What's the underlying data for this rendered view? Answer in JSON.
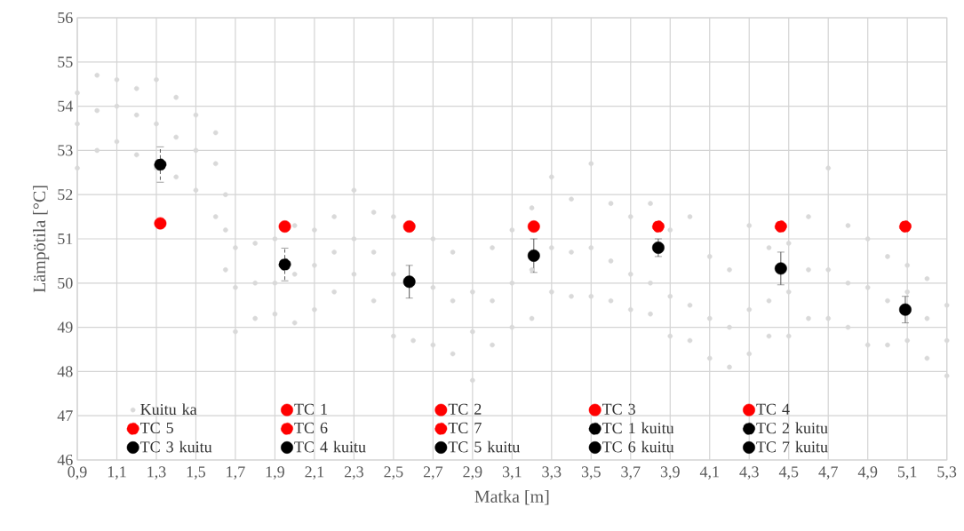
{
  "chart_data": {
    "type": "scatter",
    "xlabel": "Matka [m]",
    "ylabel": "Lämpötila [°C]",
    "xlim": [
      0.9,
      5.3
    ],
    "ylim": [
      46,
      56
    ],
    "xticks": [
      {
        "value": 0.9,
        "label": "0,9"
      },
      {
        "value": 1.1,
        "label": "1,1"
      },
      {
        "value": 1.3,
        "label": "1,3"
      },
      {
        "value": 1.5,
        "label": "1,5"
      },
      {
        "value": 1.7,
        "label": "1,7"
      },
      {
        "value": 1.9,
        "label": "1,9"
      },
      {
        "value": 2.1,
        "label": "2,1"
      },
      {
        "value": 2.3,
        "label": "2,3"
      },
      {
        "value": 2.5,
        "label": "2,5"
      },
      {
        "value": 2.7,
        "label": "2,7"
      },
      {
        "value": 2.9,
        "label": "2,9"
      },
      {
        "value": 3.1,
        "label": "3,1"
      },
      {
        "value": 3.3,
        "label": "3,3"
      },
      {
        "value": 3.5,
        "label": "3,5"
      },
      {
        "value": 3.7,
        "label": "3,7"
      },
      {
        "value": 3.9,
        "label": "3,9"
      },
      {
        "value": 4.1,
        "label": "4,1"
      },
      {
        "value": 4.3,
        "label": "4,3"
      },
      {
        "value": 4.5,
        "label": "4,5"
      },
      {
        "value": 4.7,
        "label": "4,7"
      },
      {
        "value": 4.9,
        "label": "4,9"
      },
      {
        "value": 5.1,
        "label": "5,1"
      },
      {
        "value": 5.3,
        "label": "5,3"
      }
    ],
    "yticks": [
      46,
      47,
      48,
      49,
      50,
      51,
      52,
      53,
      54,
      55,
      56
    ],
    "grid": true,
    "legend": "bottom",
    "marker": "circle",
    "series": [
      {
        "name": "Kuitu ka",
        "color": "#d9d9d9",
        "x": [
          0.9,
          0.9,
          0.9,
          1.0,
          1.0,
          1.0,
          1.1,
          1.1,
          1.1,
          1.2,
          1.2,
          1.2,
          1.3,
          1.3,
          1.3,
          1.4,
          1.4,
          1.4,
          1.5,
          1.5,
          1.5,
          1.6,
          1.6,
          1.6,
          1.65,
          1.65,
          1.65,
          1.7,
          1.7,
          1.7,
          1.8,
          1.8,
          1.8,
          1.9,
          1.9,
          1.9,
          2.0,
          2.0,
          2.0,
          2.1,
          2.1,
          2.1,
          2.2,
          2.2,
          2.2,
          2.3,
          2.3,
          2.3,
          2.4,
          2.4,
          2.4,
          2.5,
          2.5,
          2.5,
          2.6,
          2.6,
          2.6,
          2.7,
          2.7,
          2.7,
          2.8,
          2.8,
          2.8,
          2.9,
          2.9,
          2.9,
          3.0,
          3.0,
          3.0,
          3.1,
          3.1,
          3.1,
          3.2,
          3.2,
          3.2,
          3.3,
          3.3,
          3.3,
          3.4,
          3.4,
          3.4,
          3.5,
          3.5,
          3.5,
          3.6,
          3.6,
          3.6,
          3.7,
          3.7,
          3.7,
          3.8,
          3.8,
          3.8,
          3.9,
          3.9,
          3.9,
          4.0,
          4.0,
          4.0,
          4.1,
          4.1,
          4.1,
          4.2,
          4.2,
          4.2,
          4.3,
          4.3,
          4.3,
          4.4,
          4.4,
          4.4,
          4.5,
          4.5,
          4.5,
          4.6,
          4.6,
          4.6,
          4.7,
          4.7,
          4.7,
          4.8,
          4.8,
          4.8,
          4.9,
          4.9,
          4.9,
          5.0,
          5.0,
          5.0,
          5.1,
          5.1,
          5.1,
          5.2,
          5.2,
          5.2,
          5.3,
          5.3,
          5.3
        ],
        "values": [
          52.6,
          53.6,
          54.3,
          53.0,
          53.9,
          54.7,
          53.2,
          54.0,
          54.6,
          52.9,
          53.8,
          54.4,
          52.6,
          53.6,
          54.6,
          52.4,
          53.3,
          54.2,
          52.1,
          53.0,
          53.8,
          51.5,
          52.7,
          53.4,
          50.3,
          51.2,
          52.0,
          48.9,
          49.9,
          50.8,
          49.2,
          50.0,
          50.9,
          49.3,
          50.0,
          51.0,
          49.1,
          50.2,
          51.3,
          49.4,
          50.4,
          51.2,
          49.8,
          50.7,
          51.5,
          50.2,
          51.0,
          52.1,
          49.6,
          50.7,
          51.6,
          48.8,
          50.2,
          51.5,
          48.7,
          50.0,
          51.3,
          48.6,
          49.9,
          51.0,
          48.4,
          49.6,
          50.7,
          47.8,
          48.9,
          49.8,
          48.6,
          49.6,
          50.8,
          49.0,
          50.0,
          51.2,
          49.2,
          50.3,
          51.7,
          49.8,
          50.8,
          52.4,
          49.7,
          50.7,
          51.9,
          49.7,
          50.8,
          52.7,
          49.6,
          50.5,
          51.8,
          49.4,
          50.2,
          51.5,
          49.3,
          50.0,
          51.8,
          48.8,
          49.7,
          51.2,
          48.7,
          49.5,
          51.5,
          48.3,
          49.2,
          50.6,
          48.1,
          49.0,
          50.3,
          48.4,
          49.4,
          51.3,
          48.8,
          49.6,
          50.8,
          48.8,
          49.8,
          50.9,
          49.2,
          50.3,
          51.5,
          49.2,
          50.3,
          52.6,
          49.0,
          50.0,
          51.3,
          48.6,
          49.9,
          51.0,
          48.6,
          49.6,
          50.6,
          48.7,
          49.8,
          50.4,
          48.3,
          49.2,
          50.1,
          47.9,
          48.7,
          49.5
        ]
      },
      {
        "name": "TC 1",
        "color": "#ff0000",
        "x": [
          1.32
        ],
        "values": [
          51.35
        ]
      },
      {
        "name": "TC 2",
        "color": "#ff0000",
        "x": [
          1.95
        ],
        "values": [
          51.28
        ]
      },
      {
        "name": "TC 3",
        "color": "#ff0000",
        "x": [
          2.58
        ],
        "values": [
          51.28
        ]
      },
      {
        "name": "TC 4",
        "color": "#ff0000",
        "x": [
          3.21
        ],
        "values": [
          51.28
        ]
      },
      {
        "name": "TC 5",
        "color": "#ff0000",
        "x": [
          3.84
        ],
        "values": [
          51.28
        ]
      },
      {
        "name": "TC 6",
        "color": "#ff0000",
        "x": [
          4.46
        ],
        "values": [
          51.28
        ]
      },
      {
        "name": "TC 7",
        "color": "#ff0000",
        "x": [
          5.09
        ],
        "values": [
          51.28
        ]
      },
      {
        "name": "TC 1 kuitu",
        "color": "#000000",
        "x": [
          1.32
        ],
        "values": [
          52.68
        ],
        "errors": [
          0.4
        ]
      },
      {
        "name": "TC 2 kuitu",
        "color": "#000000",
        "x": [
          1.95
        ],
        "values": [
          50.42
        ],
        "errors": [
          0.37
        ]
      },
      {
        "name": "TC 3 kuitu",
        "color": "#000000",
        "x": [
          2.58
        ],
        "values": [
          50.03
        ],
        "errors": [
          0.37
        ]
      },
      {
        "name": "TC 4 kuitu",
        "color": "#000000",
        "x": [
          3.21
        ],
        "values": [
          50.62
        ],
        "errors": [
          0.38
        ]
      },
      {
        "name": "TC 5 kuitu",
        "color": "#000000",
        "x": [
          3.84
        ],
        "values": [
          50.8
        ],
        "errors": [
          0.2
        ]
      },
      {
        "name": "TC 6 kuitu",
        "color": "#000000",
        "x": [
          4.46
        ],
        "values": [
          50.33
        ],
        "errors": [
          0.37
        ]
      },
      {
        "name": "TC 7 kuitu",
        "color": "#000000",
        "x": [
          5.09
        ],
        "values": [
          49.4
        ],
        "errors": [
          0.3
        ]
      }
    ]
  }
}
